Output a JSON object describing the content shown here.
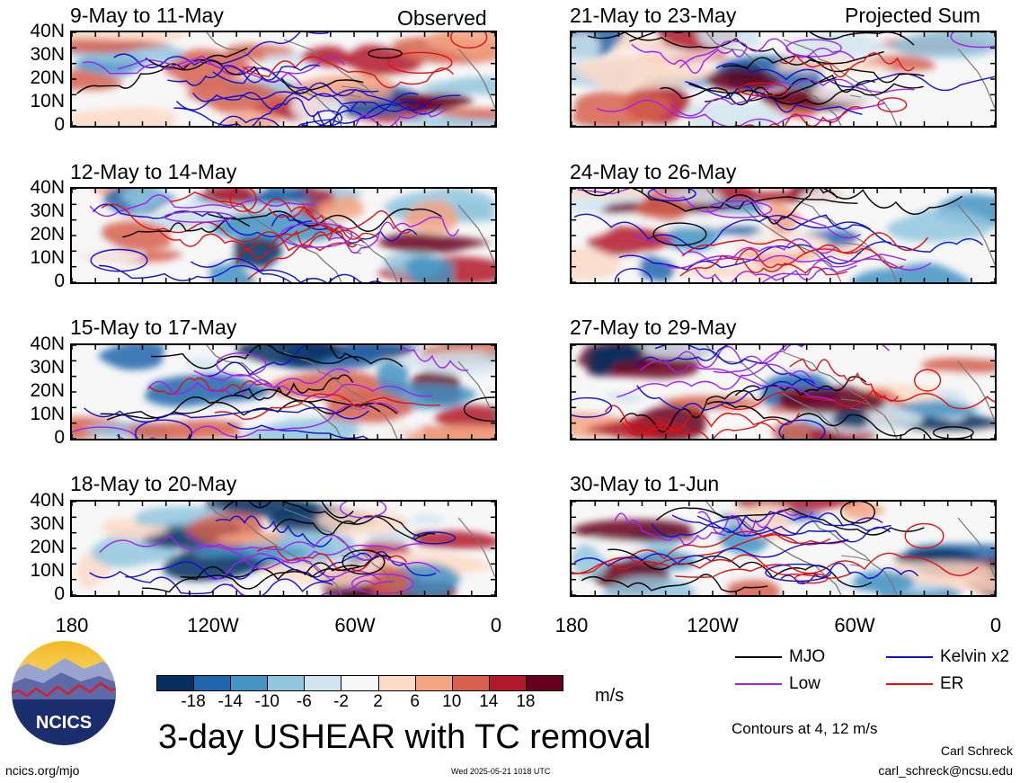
{
  "panels": [
    {
      "title": "9-May to 11-May",
      "corner": "Observed"
    },
    {
      "title": "21-May to 23-May",
      "corner": "Projected Sum"
    },
    {
      "title": "12-May to 14-May",
      "corner": ""
    },
    {
      "title": "24-May to 26-May",
      "corner": ""
    },
    {
      "title": "15-May to 17-May",
      "corner": ""
    },
    {
      "title": "27-May to 29-May",
      "corner": ""
    },
    {
      "title": "18-May to 20-May",
      "corner": ""
    },
    {
      "title": "30-May to 1-Jun",
      "corner": ""
    }
  ],
  "lat_labels": [
    "40N",
    "30N",
    "20N",
    "10N",
    "0"
  ],
  "lon_labels": [
    "180",
    "120W",
    "60W",
    "0"
  ],
  "colorbar": {
    "ticks": [
      "-18",
      "-14",
      "-10",
      "-6",
      "-2",
      "2",
      "6",
      "10",
      "14",
      "18"
    ],
    "colors": [
      "#053061",
      "#2166ac",
      "#4393c3",
      "#92c5de",
      "#d1e5f0",
      "#f7f7f7",
      "#fddbc7",
      "#f4a582",
      "#d6604d",
      "#b2182b",
      "#67001f"
    ],
    "units": "m/s"
  },
  "legend": {
    "items": [
      {
        "label": "MJO",
        "color": "#000000"
      },
      {
        "label": "Kelvin x2",
        "color": "#1010d0"
      },
      {
        "label": "Low",
        "color": "#a020f0"
      },
      {
        "label": "ER",
        "color": "#e01010"
      }
    ],
    "contours_note": "Contours at 4, 12 m/s"
  },
  "main_title": "3-day USHEAR with TC removal",
  "logo_text": "NCICS",
  "footer": {
    "url": "ncics.org/mjo",
    "timestamp": "Wed 2025-05-21 1018 UTC",
    "author": "Carl Schreck",
    "email": "carl_schreck@ncsu.edu"
  }
}
